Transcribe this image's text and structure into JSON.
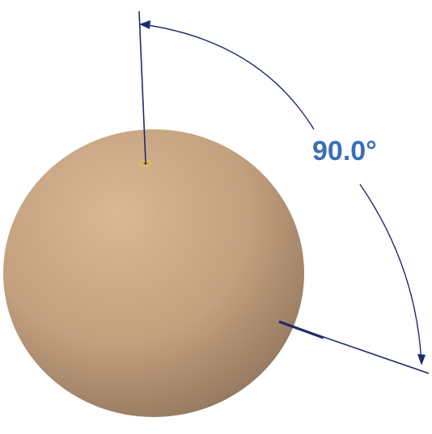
{
  "scene": {
    "object": "sphere",
    "colors": {
      "sphere_light": "#d9b894",
      "sphere_mid": "#c3a07e",
      "sphere_dark": "#8d7159",
      "dimension_line": "#1f2a6b",
      "angle_text": "#3a6fb5",
      "vertex_marker": "#e0c84a",
      "background": "#ffffff"
    }
  },
  "angle_dimension": {
    "value_label": "90.0°",
    "value_degrees": 90.0
  }
}
